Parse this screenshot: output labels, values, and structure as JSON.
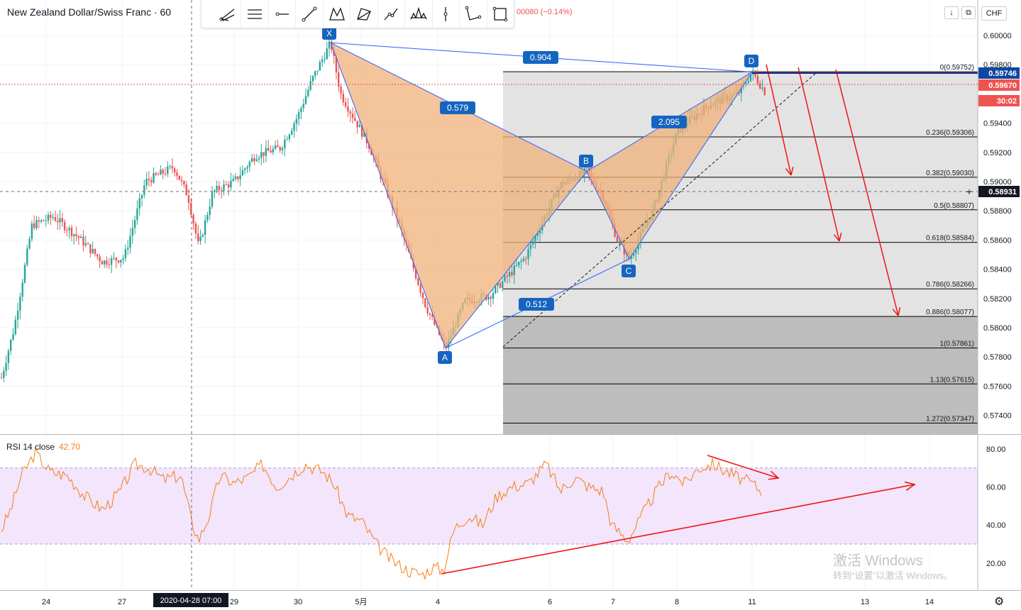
{
  "header": {
    "symbol_title": "New Zealand Dollar/Swiss Franc · 60",
    "change_text": "00080 (−0.14%)",
    "currency": "CHF"
  },
  "toolbar": {
    "tools": [
      "pitchfork-icon",
      "parallel-lines-icon",
      "horizontal-ray-icon",
      "trend-line-icon",
      "xabcd-pattern-icon",
      "triangle-pattern-icon",
      "path-icon",
      "head-shoulders-icon",
      "vertical-line-icon",
      "abcd-pattern-icon",
      "rectangle-icon"
    ]
  },
  "rsi": {
    "label": "RSI 14 close",
    "value": "42.70"
  },
  "watermark": {
    "line1": "激活 Windows",
    "line2": "转到“设置”以激活 Windows。"
  },
  "chart_data": {
    "type": "candlestick",
    "title": "New Zealand Dollar/Swiss Franc · 60",
    "price_axis_labels": [
      "0.60000",
      "0.59800",
      "0.59400",
      "0.59200",
      "0.59000",
      "0.58800",
      "0.58600",
      "0.58400",
      "0.58200",
      "0.58000",
      "0.57800",
      "0.57600",
      "0.57400"
    ],
    "time_axis_labels": [
      "24",
      "27",
      "29",
      "30",
      "5月",
      "4",
      "6",
      "7",
      "8",
      "11",
      "13",
      "14"
    ],
    "crosshair_time": "2020-04-28   07:00",
    "price_tags": [
      {
        "value": "0.59746",
        "color": "#0d47a1"
      },
      {
        "value": "0.59670",
        "color": "#ef5350"
      },
      {
        "value": "30:02",
        "color": "#ef5350"
      },
      {
        "value": "0.58931",
        "color": "#131722"
      }
    ],
    "harmonic_pattern": {
      "points": [
        {
          "label": "X",
          "price": 0.5995
        },
        {
          "label": "A",
          "price": 0.5786
        },
        {
          "label": "B",
          "price": 0.5907
        },
        {
          "label": "C",
          "price": 0.5847
        },
        {
          "label": "D",
          "price": 0.5975
        }
      ],
      "ratios": [
        "0.904",
        "0.579",
        "2.095",
        "0.512"
      ]
    },
    "fib_levels": [
      {
        "label": "0(0.59752)",
        "price": 0.59752
      },
      {
        "label": "0.236(0.59306)",
        "price": 0.59306
      },
      {
        "label": "0.382(0.59030)",
        "price": 0.5903
      },
      {
        "label": "0.5(0.58807)",
        "price": 0.58807
      },
      {
        "label": "0.618(0.58584)",
        "price": 0.58584
      },
      {
        "label": "0.786(0.58266)",
        "price": 0.58266
      },
      {
        "label": "0.886(0.58077)",
        "price": 0.58077
      },
      {
        "label": "1(0.57861)",
        "price": 0.57861
      },
      {
        "label": "1.13(0.57615)",
        "price": 0.57615
      },
      {
        "label": "1.272(0.57347)",
        "price": 0.57347
      }
    ],
    "rsi_axis_labels": [
      "80.00",
      "60.00",
      "40.00",
      "20.00"
    ],
    "rsi_band": [
      30,
      70
    ],
    "colors": {
      "up": "#26a69a",
      "down": "#ef5350",
      "pattern_fill": "#f0b27a",
      "pattern_line": "#2962ff",
      "rsi_line": "#f57f17",
      "rsi_band": "#f3e5fc",
      "arrows": "#f01414"
    }
  }
}
